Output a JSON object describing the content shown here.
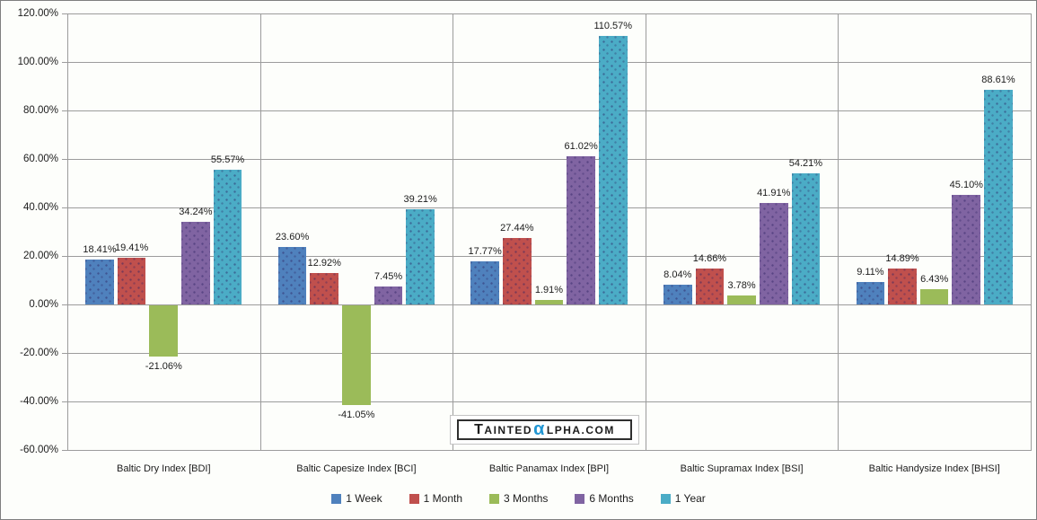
{
  "chart_data": {
    "type": "bar",
    "title": "",
    "categories": [
      "Baltic Dry Index [BDI]",
      "Baltic Capesize Index [BCI]",
      "Baltic Panamax Index [BPI]",
      "Baltic Supramax Index [BSI]",
      "Baltic Handysize Index [BHSI]"
    ],
    "series": [
      {
        "name": "1 Week",
        "color": "#4F81BD",
        "values": [
          18.41,
          23.6,
          17.77,
          8.04,
          9.11
        ]
      },
      {
        "name": "1 Month",
        "color": "#C0504D",
        "values": [
          19.41,
          12.92,
          27.44,
          14.66,
          14.89
        ]
      },
      {
        "name": "3 Months",
        "color": "#9BBB59",
        "values": [
          -21.06,
          -41.05,
          1.91,
          3.78,
          6.43
        ]
      },
      {
        "name": "6 Months",
        "color": "#8064A2",
        "values": [
          34.24,
          7.45,
          61.02,
          41.91,
          45.1
        ]
      },
      {
        "name": "1 Year",
        "color": "#4BACC6",
        "values": [
          55.57,
          39.21,
          110.57,
          54.21,
          88.61
        ]
      }
    ],
    "ylim": [
      -60,
      120
    ],
    "ytick_step": 20,
    "ytick_labels": [
      "120.00%",
      "100.00%",
      "80.00%",
      "60.00%",
      "40.00%",
      "20.00%",
      "0.00%",
      "-20.00%",
      "-40.00%",
      "-60.00%"
    ],
    "value_label_suffix": "%",
    "grid": true,
    "legend_position": "bottom"
  },
  "watermark": {
    "before_alpha": "TAINTED",
    "alpha": "α",
    "after_alpha": "LPHA.COM",
    "alpha_color": "#2196D3"
  },
  "colors": {
    "gridline": "#9C9C9C",
    "text": "#1C1C1C",
    "background": "#FDFEFB",
    "border": "#7F7F7F"
  }
}
